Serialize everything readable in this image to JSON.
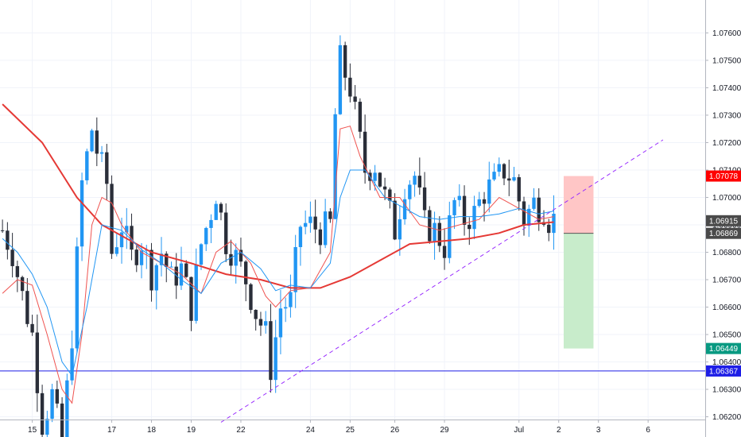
{
  "chart_data": {
    "type": "candlestick",
    "title": "",
    "xlabel": "",
    "ylabel": "",
    "ylim": [
      1.0619,
      1.0772
    ],
    "y_ticks": [
      {
        "value": 1.062,
        "label": "1.06200"
      },
      {
        "value": 1.063,
        "label": "1.06300"
      },
      {
        "value": 1.064,
        "label": "1.06400"
      },
      {
        "value": 1.065,
        "label": "1.06500"
      },
      {
        "value": 1.066,
        "label": "1.06600"
      },
      {
        "value": 1.067,
        "label": "1.06700"
      },
      {
        "value": 1.068,
        "label": "1.06800"
      },
      {
        "value": 1.069,
        "label": "1.06900"
      },
      {
        "value": 1.07,
        "label": "1.07000"
      },
      {
        "value": 1.071,
        "label": "1.07100"
      },
      {
        "value": 1.072,
        "label": "1.07200"
      },
      {
        "value": 1.073,
        "label": "1.07300"
      },
      {
        "value": 1.074,
        "label": "1.07400"
      },
      {
        "value": 1.075,
        "label": "1.07500"
      },
      {
        "value": 1.076,
        "label": "1.07600"
      }
    ],
    "x_ticks": [
      "15",
      "17",
      "18",
      "19",
      "22",
      "24",
      "25",
      "26",
      "29",
      "Jul",
      "2",
      "3",
      "6"
    ],
    "x_tick_bars": [
      6,
      22,
      30,
      38,
      48,
      62,
      70,
      79,
      89,
      104,
      112,
      120,
      130
    ],
    "bar_count": 142,
    "price_labels": [
      {
        "value": 1.07078,
        "label": "1.07078",
        "color": "#ff0000"
      },
      {
        "value": 1.06915,
        "label": "1.06915",
        "color": "#4a4a4a"
      },
      {
        "value": 1.06869,
        "label": "1.06869",
        "color": "#4a4a4a"
      },
      {
        "value": 1.06449,
        "label": "1.06449",
        "color": "#089981"
      },
      {
        "value": 1.06367,
        "label": "1.06367",
        "color": "#1e1ee6"
      }
    ],
    "horizontal_line": {
      "value": 1.06367,
      "color": "#1e1ee6"
    },
    "trendline": {
      "x_start": 44,
      "y_start": 1.0618,
      "x_end": 133,
      "y_end": 1.0721,
      "color": "#9b30ff",
      "style": "dashed"
    },
    "position": {
      "x_start": 113,
      "x_end": 119,
      "stop": 1.07078,
      "entry": 1.06869,
      "target": 1.06449,
      "risk_color": "#ffc6c6",
      "reward_color": "#c8eccb"
    },
    "series": [
      {
        "type": "ma",
        "color": "#e53935",
        "points": [
          [
            0,
            1.0734
          ],
          [
            8,
            1.072
          ],
          [
            15,
            1.07
          ],
          [
            20,
            1.069
          ],
          [
            30,
            1.068
          ],
          [
            38,
            1.0676
          ],
          [
            45,
            1.0672
          ],
          [
            52,
            1.067
          ],
          [
            58,
            1.0667
          ],
          [
            64,
            1.0667
          ],
          [
            70,
            1.0671
          ],
          [
            76,
            1.0677
          ],
          [
            82,
            1.0683
          ],
          [
            88,
            1.0684
          ],
          [
            94,
            1.0685
          ],
          [
            100,
            1.0687
          ],
          [
            105,
            1.069
          ],
          [
            111,
            1.0691
          ]
        ]
      },
      {
        "type": "ma",
        "color": "#ef5350",
        "points": [
          [
            0,
            1.0665
          ],
          [
            3,
            1.067
          ],
          [
            6,
            1.0668
          ],
          [
            9,
            1.065
          ],
          [
            12,
            1.063
          ],
          [
            14,
            1.0625
          ],
          [
            16,
            1.065
          ],
          [
            18,
            1.069
          ],
          [
            20,
            1.07
          ],
          [
            22,
            1.0698
          ],
          [
            24,
            1.069
          ],
          [
            28,
            1.068
          ],
          [
            32,
            1.0676
          ],
          [
            36,
            1.0672
          ],
          [
            40,
            1.0665
          ],
          [
            43,
            1.068
          ],
          [
            46,
            1.0684
          ],
          [
            50,
            1.0676
          ],
          [
            53,
            1.0664
          ],
          [
            55,
            1.066
          ],
          [
            58,
            1.0666
          ],
          [
            62,
            1.0667
          ],
          [
            66,
            1.068
          ],
          [
            68,
            1.0725
          ],
          [
            70,
            1.0726
          ],
          [
            72,
            1.0715
          ],
          [
            76,
            1.07
          ],
          [
            80,
            1.07
          ],
          [
            84,
            1.069
          ],
          [
            88,
            1.0688
          ],
          [
            92,
            1.069
          ],
          [
            96,
            1.0692
          ],
          [
            100,
            1.07
          ],
          [
            104,
            1.0696
          ],
          [
            108,
            1.0692
          ],
          [
            111,
            1.0693
          ]
        ]
      },
      {
        "type": "ma",
        "color": "#2196f3",
        "points": [
          [
            0,
            1.0685
          ],
          [
            3,
            1.068
          ],
          [
            6,
            1.0672
          ],
          [
            9,
            1.066
          ],
          [
            12,
            1.064
          ],
          [
            14,
            1.0635
          ],
          [
            17,
            1.066
          ],
          [
            20,
            1.069
          ],
          [
            24,
            1.0688
          ],
          [
            28,
            1.0681
          ],
          [
            32,
            1.0676
          ],
          [
            36,
            1.067
          ],
          [
            40,
            1.0665
          ],
          [
            44,
            1.0676
          ],
          [
            48,
            1.068
          ],
          [
            52,
            1.0674
          ],
          [
            55,
            1.0666
          ],
          [
            58,
            1.0668
          ],
          [
            62,
            1.0667
          ],
          [
            66,
            1.0676
          ],
          [
            68,
            1.07
          ],
          [
            70,
            1.071
          ],
          [
            73,
            1.071
          ],
          [
            77,
            1.07
          ],
          [
            80,
            1.0697
          ],
          [
            84,
            1.0693
          ],
          [
            88,
            1.0692
          ],
          [
            92,
            1.0693
          ],
          [
            96,
            1.0693
          ],
          [
            100,
            1.0694
          ],
          [
            104,
            1.0696
          ],
          [
            108,
            1.0694
          ],
          [
            111,
            1.0695
          ]
        ]
      }
    ],
    "close_path": [
      [
        0,
        1.0688
      ],
      [
        2,
        1.068
      ],
      [
        4,
        1.0664
      ],
      [
        6,
        1.065
      ],
      [
        8,
        1.0618
      ],
      [
        10,
        1.0628
      ],
      [
        12,
        1.061
      ],
      [
        14,
        1.065
      ],
      [
        16,
        1.0705
      ],
      [
        18,
        1.0725
      ],
      [
        19,
        1.0717
      ],
      [
        21,
        1.0705
      ],
      [
        22,
        1.068
      ],
      [
        24,
        1.069
      ],
      [
        26,
        1.0678
      ],
      [
        28,
        1.0684
      ],
      [
        30,
        1.0672
      ],
      [
        32,
        1.068
      ],
      [
        34,
        1.067
      ],
      [
        36,
        1.0674
      ],
      [
        38,
        1.066
      ],
      [
        40,
        1.0683
      ],
      [
        42,
        1.0695
      ],
      [
        43,
        1.0702
      ],
      [
        45,
        1.0684
      ],
      [
        47,
        1.0678
      ],
      [
        49,
        1.067
      ],
      [
        51,
        1.0658
      ],
      [
        53,
        1.065
      ],
      [
        54,
        1.0638
      ],
      [
        56,
        1.066
      ],
      [
        58,
        1.0662
      ],
      [
        60,
        1.069
      ],
      [
        62,
        1.069
      ],
      [
        64,
        1.0688
      ],
      [
        66,
        1.069
      ],
      [
        67,
        1.073
      ],
      [
        68,
        1.075
      ],
      [
        69,
        1.0745
      ],
      [
        70,
        1.074
      ],
      [
        71,
        1.073
      ],
      [
        72,
        1.072
      ],
      [
        73,
        1.071
      ],
      [
        75,
        1.0712
      ],
      [
        77,
        1.07
      ],
      [
        79,
        1.0688
      ],
      [
        81,
        1.0705
      ],
      [
        83,
        1.0708
      ],
      [
        85,
        1.069
      ],
      [
        87,
        1.0688
      ],
      [
        89,
        1.0682
      ],
      [
        91,
        1.0698
      ],
      [
        93,
        1.0692
      ],
      [
        95,
        1.0694
      ],
      [
        97,
        1.0702
      ],
      [
        99,
        1.0705
      ],
      [
        101,
        1.071
      ],
      [
        103,
        1.0706
      ],
      [
        105,
        1.0692
      ],
      [
        107,
        1.0698
      ],
      [
        109,
        1.0696
      ],
      [
        110,
        1.0692
      ],
      [
        111,
        1.0692
      ]
    ]
  }
}
